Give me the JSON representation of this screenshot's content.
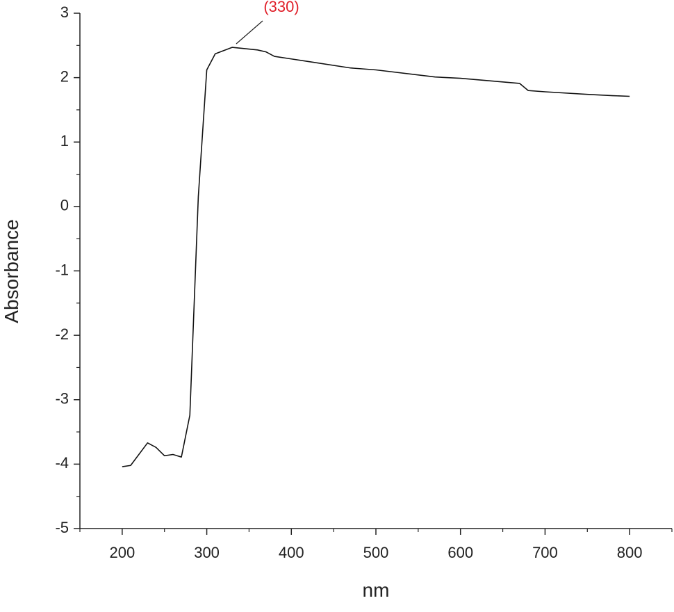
{
  "chart_data": {
    "type": "line",
    "x_label": "nm",
    "y_label": "Absorbance",
    "annotation": "(330)",
    "x": [
      200,
      210,
      230,
      240,
      250,
      260,
      270,
      280,
      290,
      300,
      310,
      330,
      360,
      370,
      380,
      400,
      420,
      470,
      500,
      570,
      600,
      670,
      680,
      700,
      750,
      780,
      800
    ],
    "series": [
      {
        "color": "#111111",
        "values": [
          -4.04,
          -4.02,
          -3.67,
          -3.74,
          -3.87,
          -3.85,
          -3.89,
          -3.24,
          0.15,
          2.12,
          2.37,
          2.47,
          2.43,
          2.4,
          2.33,
          2.29,
          2.25,
          2.15,
          2.12,
          2.01,
          1.99,
          1.91,
          1.8,
          1.78,
          1.74,
          1.72,
          1.71
        ]
      }
    ],
    "annotation_color": "#e0202a",
    "xlim": [
      150,
      850
    ],
    "ylim": [
      -5,
      3
    ],
    "xticks": [
      200,
      300,
      400,
      500,
      600,
      700,
      800
    ],
    "yticks": [
      -5,
      -4,
      -3,
      -2,
      -1,
      0,
      1,
      2,
      3
    ]
  }
}
